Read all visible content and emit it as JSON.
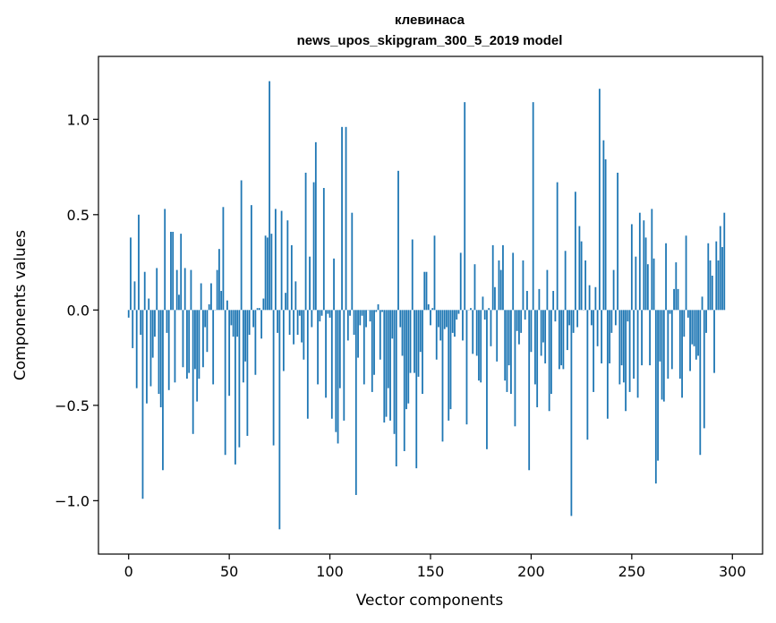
{
  "chart_data": {
    "type": "bar",
    "title_line1": "клевинаса",
    "title_line2": "news_upos_skipgram_300_5_2019 model",
    "xlabel": "Vector components",
    "ylabel": "Components values",
    "xlim": [
      -15,
      315
    ],
    "ylim": [
      -1.28,
      1.33
    ],
    "x_ticks": [
      0,
      50,
      100,
      150,
      200,
      250,
      300
    ],
    "y_ticks": [
      -1.0,
      -0.5,
      0.0,
      0.5,
      1.0
    ],
    "x_tick_labels": [
      "0",
      "50",
      "100",
      "150",
      "200",
      "250",
      "300"
    ],
    "y_tick_labels": [
      "−1.0",
      "−0.5",
      "0.0",
      "0.5",
      "1.0"
    ],
    "grid": false,
    "color": "#1f77b4",
    "values": [
      -0.04,
      0.38,
      -0.2,
      0.15,
      -0.41,
      0.5,
      -0.13,
      -0.99,
      0.2,
      -0.49,
      0.06,
      -0.4,
      -0.25,
      -0.14,
      0.22,
      -0.44,
      -0.51,
      -0.84,
      0.53,
      -0.12,
      -0.42,
      0.41,
      0.41,
      -0.38,
      0.21,
      0.08,
      0.4,
      -0.3,
      0.22,
      -0.36,
      -0.33,
      0.21,
      -0.65,
      -0.31,
      -0.48,
      -0.36,
      0.14,
      -0.3,
      -0.09,
      -0.22,
      0.03,
      0.14,
      -0.39,
      0.0,
      0.21,
      0.32,
      0.1,
      0.54,
      -0.76,
      0.05,
      -0.45,
      -0.08,
      -0.14,
      -0.81,
      -0.14,
      -0.72,
      0.68,
      -0.38,
      -0.27,
      -0.66,
      -0.13,
      0.55,
      -0.09,
      -0.34,
      0.01,
      0.01,
      -0.15,
      0.06,
      0.39,
      0.38,
      1.2,
      0.4,
      -0.71,
      0.53,
      -0.12,
      -1.15,
      0.52,
      -0.32,
      0.09,
      0.47,
      -0.13,
      0.34,
      -0.18,
      0.15,
      -0.13,
      -0.03,
      -0.17,
      -0.26,
      0.72,
      -0.57,
      0.28,
      -0.09,
      0.67,
      0.88,
      -0.39,
      -0.06,
      -0.03,
      0.64,
      -0.46,
      -0.02,
      -0.04,
      -0.57,
      0.27,
      -0.64,
      -0.7,
      -0.41,
      0.96,
      -0.58,
      0.96,
      -0.16,
      -0.03,
      0.51,
      -0.13,
      -0.97,
      -0.25,
      -0.08,
      -0.03,
      -0.39,
      -0.09,
      0.0,
      -0.06,
      -0.43,
      -0.34,
      -0.01,
      0.03,
      -0.26,
      -0.01,
      -0.59,
      -0.56,
      -0.41,
      -0.58,
      -0.15,
      -0.65,
      -0.82,
      0.73,
      -0.09,
      -0.24,
      -0.74,
      -0.52,
      -0.49,
      -0.33,
      0.37,
      -0.33,
      -0.83,
      -0.35,
      -0.22,
      -0.44,
      0.2,
      0.2,
      0.03,
      -0.08,
      0.01,
      0.39,
      -0.26,
      -0.09,
      -0.16,
      -0.69,
      -0.1,
      -0.09,
      -0.58,
      -0.52,
      -0.12,
      -0.14,
      -0.05,
      -0.02,
      0.3,
      -0.16,
      1.09,
      -0.6,
      0.0,
      0.01,
      -0.23,
      0.24,
      -0.24,
      -0.37,
      -0.38,
      0.07,
      -0.05,
      -0.73,
      0.01,
      -0.19,
      0.34,
      0.12,
      -0.27,
      0.26,
      0.21,
      0.34,
      -0.37,
      -0.43,
      -0.29,
      -0.44,
      0.3,
      -0.61,
      -0.11,
      -0.18,
      -0.12,
      0.26,
      -0.05,
      0.1,
      -0.84,
      -0.22,
      1.09,
      -0.39,
      -0.51,
      0.11,
      -0.24,
      -0.17,
      -0.28,
      0.21,
      -0.53,
      -0.44,
      0.1,
      -0.06,
      0.67,
      -0.31,
      -0.29,
      -0.31,
      0.31,
      -0.21,
      -0.08,
      -1.08,
      -0.12,
      0.62,
      -0.09,
      0.44,
      0.36,
      0.0,
      0.26,
      -0.68,
      0.13,
      -0.08,
      -0.43,
      0.12,
      -0.19,
      1.16,
      -0.28,
      0.89,
      0.79,
      -0.57,
      -0.28,
      -0.12,
      0.21,
      -0.08,
      0.72,
      -0.39,
      -0.29,
      -0.38,
      -0.53,
      -0.06,
      -0.43,
      0.45,
      -0.36,
      0.28,
      -0.46,
      0.51,
      -0.29,
      0.47,
      0.38,
      0.24,
      -0.29,
      0.53,
      0.27,
      -0.91,
      -0.79,
      -0.27,
      -0.47,
      -0.48,
      0.35,
      -0.36,
      -0.02,
      -0.31,
      0.11,
      0.25,
      0.11,
      -0.36,
      -0.46,
      -0.14,
      0.39,
      -0.04,
      -0.32,
      -0.18,
      -0.19,
      -0.26,
      -0.24,
      -0.76,
      0.07,
      -0.62,
      -0.12,
      0.35,
      0.26,
      0.18,
      -0.33,
      0.36,
      0.26,
      0.44,
      0.33,
      0.51
    ]
  }
}
